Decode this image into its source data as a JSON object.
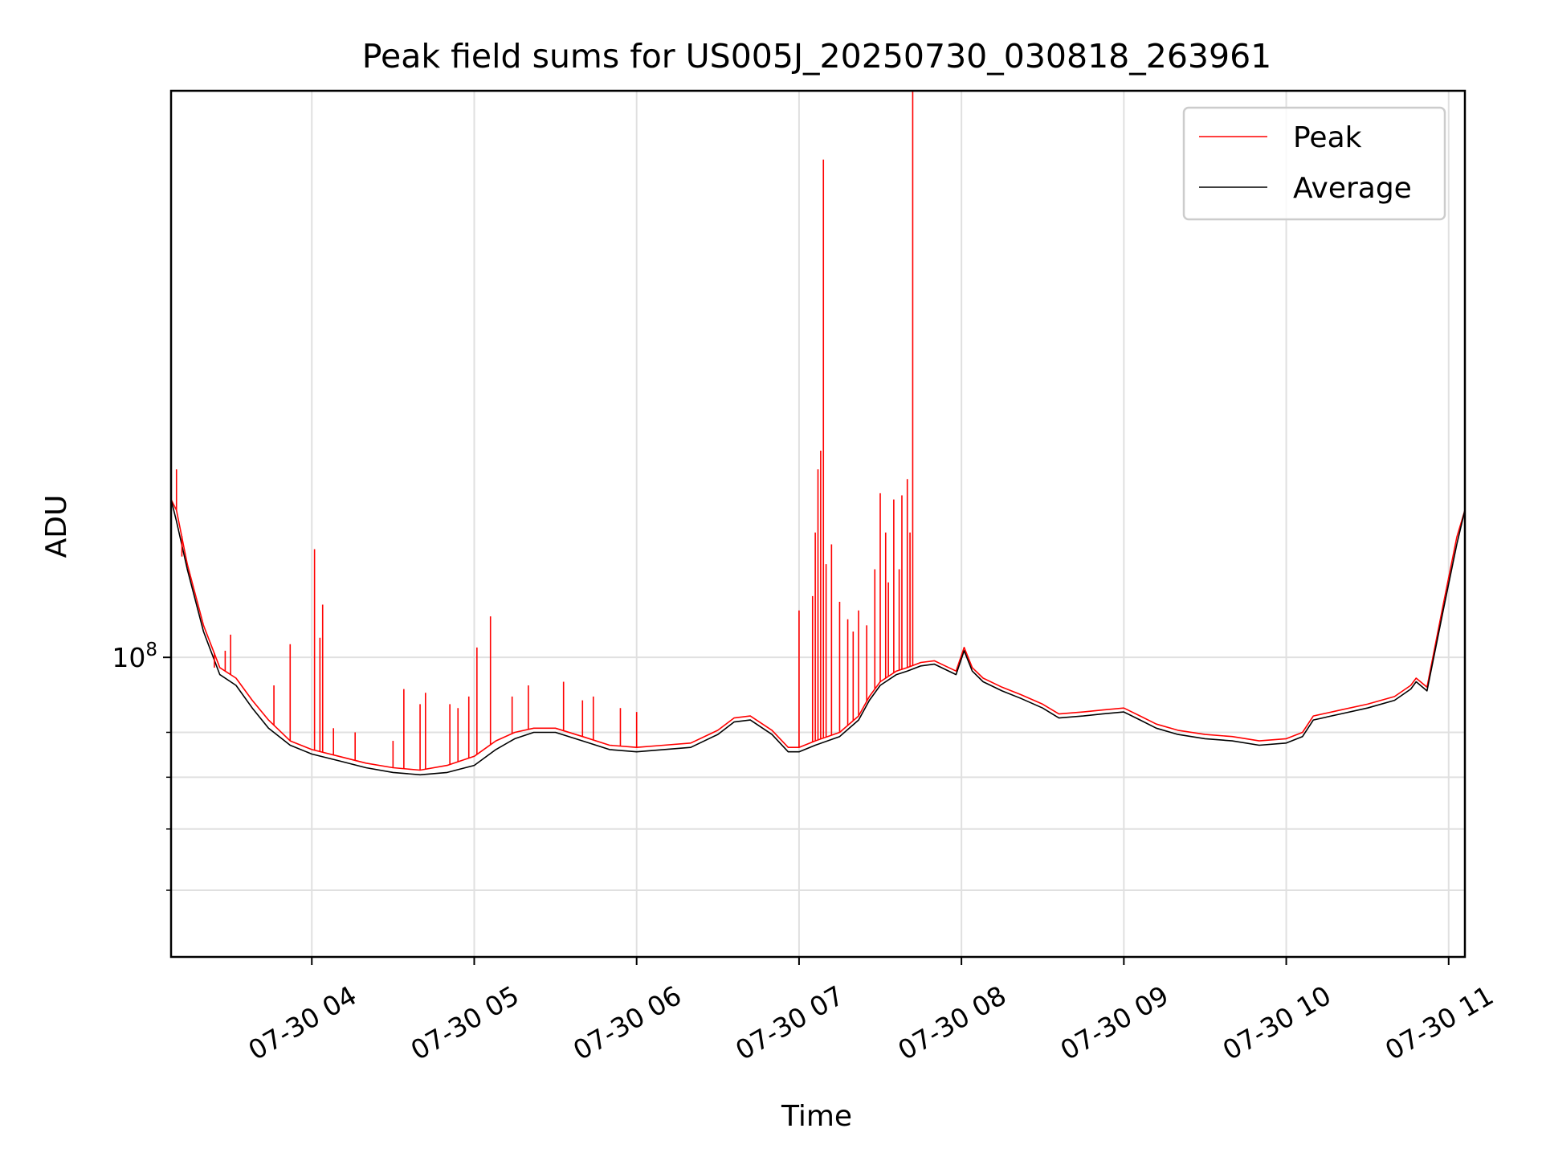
{
  "chart_data": {
    "type": "line",
    "title": "Peak field sums for US005J_20250730_030818_263961",
    "xlabel": "Time",
    "ylabel": "ADU",
    "y_scale": "log",
    "ylim": [
      41000000.0,
      540000000.0
    ],
    "y_tick_labels": [
      {
        "value": 100000000.0,
        "base": "10",
        "exp": "8"
      }
    ],
    "y_minor_ticks": [
      50000000.0,
      60000000.0,
      70000000.0,
      80000000.0
    ],
    "xlim": [
      "2025-07-30 03:08:00",
      "2025-07-30 11:06:00"
    ],
    "x_ticks": [
      {
        "value": "2025-07-30 04:00",
        "label": "07-30 04"
      },
      {
        "value": "2025-07-30 05:00",
        "label": "07-30 05"
      },
      {
        "value": "2025-07-30 06:00",
        "label": "07-30 06"
      },
      {
        "value": "2025-07-30 07:00",
        "label": "07-30 07"
      },
      {
        "value": "2025-07-30 08:00",
        "label": "07-30 08"
      },
      {
        "value": "2025-07-30 09:00",
        "label": "07-30 09"
      },
      {
        "value": "2025-07-30 10:00",
        "label": "07-30 10"
      },
      {
        "value": "2025-07-30 11:00",
        "label": "07-30 11"
      }
    ],
    "grid": true,
    "legend_position": "upper-right",
    "colors": {
      "peak": "#ff0000",
      "average": "#000000",
      "grid": "#e0e0e0"
    },
    "series": [
      {
        "name": "Average",
        "color": "#000000",
        "x": [
          "2025-07-30 03:08",
          "2025-07-30 03:10",
          "2025-07-30 03:14",
          "2025-07-30 03:20",
          "2025-07-30 03:26",
          "2025-07-30 03:32",
          "2025-07-30 03:38",
          "2025-07-30 03:44",
          "2025-07-30 03:52",
          "2025-07-30 04:00",
          "2025-07-30 04:10",
          "2025-07-30 04:20",
          "2025-07-30 04:30",
          "2025-07-30 04:40",
          "2025-07-30 04:50",
          "2025-07-30 05:00",
          "2025-07-30 05:08",
          "2025-07-30 05:15",
          "2025-07-30 05:22",
          "2025-07-30 05:30",
          "2025-07-30 05:40",
          "2025-07-30 05:50",
          "2025-07-30 06:00",
          "2025-07-30 06:10",
          "2025-07-30 06:20",
          "2025-07-30 06:30",
          "2025-07-30 06:36",
          "2025-07-30 06:42",
          "2025-07-30 06:50",
          "2025-07-30 06:56",
          "2025-07-30 07:00",
          "2025-07-30 07:06",
          "2025-07-30 07:15",
          "2025-07-30 07:22",
          "2025-07-30 07:26",
          "2025-07-30 07:30",
          "2025-07-30 07:36",
          "2025-07-30 07:40",
          "2025-07-30 07:45",
          "2025-07-30 07:50",
          "2025-07-30 07:54",
          "2025-07-30 07:58",
          "2025-07-30 08:01",
          "2025-07-30 08:04",
          "2025-07-30 08:08",
          "2025-07-30 08:15",
          "2025-07-30 08:22",
          "2025-07-30 08:30",
          "2025-07-30 08:36",
          "2025-07-30 08:45",
          "2025-07-30 08:52",
          "2025-07-30 09:00",
          "2025-07-30 09:06",
          "2025-07-30 09:12",
          "2025-07-30 09:20",
          "2025-07-30 09:30",
          "2025-07-30 09:40",
          "2025-07-30 09:50",
          "2025-07-30 10:00",
          "2025-07-30 10:06",
          "2025-07-30 10:10",
          "2025-07-30 10:20",
          "2025-07-30 10:30",
          "2025-07-30 10:40",
          "2025-07-30 10:46",
          "2025-07-30 10:48",
          "2025-07-30 10:52",
          "2025-07-30 10:58",
          "2025-07-30 11:03",
          "2025-07-30 11:06"
        ],
        "y": [
          160000000.0,
          150000000.0,
          130000000.0,
          108000000.0,
          95000000.0,
          92000000.0,
          86000000.0,
          81000000.0,
          77000000.0,
          75000000.0,
          73500000.0,
          72000000.0,
          71000000.0,
          70500000.0,
          71000000.0,
          72500000.0,
          76000000.0,
          78500000.0,
          80000000.0,
          80000000.0,
          78000000.0,
          76000000.0,
          75500000.0,
          76000000.0,
          76500000.0,
          79500000.0,
          82500000.0,
          83000000.0,
          79500000.0,
          75500000.0,
          75500000.0,
          77000000.0,
          79000000.0,
          83000000.0,
          88000000.0,
          92000000.0,
          95000000.0,
          96000000.0,
          97500000.0,
          98000000.0,
          96500000.0,
          95000000.0,
          102000000.0,
          96000000.0,
          93000000.0,
          90500000.0,
          88500000.0,
          86000000.0,
          83500000.0,
          84000000.0,
          84500000.0,
          85000000.0,
          83000000.0,
          81000000.0,
          79500000.0,
          78500000.0,
          78000000.0,
          77000000.0,
          77500000.0,
          79000000.0,
          83000000.0,
          84500000.0,
          86000000.0,
          88000000.0,
          91000000.0,
          93000000.0,
          90500000.0,
          115000000.0,
          140000000.0,
          155000000.0
        ]
      },
      {
        "name": "Peak",
        "color": "#ff0000",
        "x": [
          "2025-07-30 03:08",
          "2025-07-30 03:10",
          "2025-07-30 03:14",
          "2025-07-30 03:20",
          "2025-07-30 03:26",
          "2025-07-30 03:32",
          "2025-07-30 03:38",
          "2025-07-30 03:44",
          "2025-07-30 03:52",
          "2025-07-30 04:00",
          "2025-07-30 04:10",
          "2025-07-30 04:20",
          "2025-07-30 04:30",
          "2025-07-30 04:40",
          "2025-07-30 04:50",
          "2025-07-30 05:00",
          "2025-07-30 05:08",
          "2025-07-30 05:15",
          "2025-07-30 05:22",
          "2025-07-30 05:30",
          "2025-07-30 05:40",
          "2025-07-30 05:50",
          "2025-07-30 06:00",
          "2025-07-30 06:10",
          "2025-07-30 06:20",
          "2025-07-30 06:30",
          "2025-07-30 06:36",
          "2025-07-30 06:42",
          "2025-07-30 06:50",
          "2025-07-30 06:56",
          "2025-07-30 07:00",
          "2025-07-30 07:06",
          "2025-07-30 07:15",
          "2025-07-30 07:22",
          "2025-07-30 07:26",
          "2025-07-30 07:30",
          "2025-07-30 07:36",
          "2025-07-30 07:40",
          "2025-07-30 07:45",
          "2025-07-30 07:50",
          "2025-07-30 07:54",
          "2025-07-30 07:58",
          "2025-07-30 08:01",
          "2025-07-30 08:04",
          "2025-07-30 08:08",
          "2025-07-30 08:15",
          "2025-07-30 08:22",
          "2025-07-30 08:30",
          "2025-07-30 08:36",
          "2025-07-30 08:45",
          "2025-07-30 08:52",
          "2025-07-30 09:00",
          "2025-07-30 09:06",
          "2025-07-30 09:12",
          "2025-07-30 09:20",
          "2025-07-30 09:30",
          "2025-07-30 09:40",
          "2025-07-30 09:50",
          "2025-07-30 10:00",
          "2025-07-30 10:06",
          "2025-07-30 10:10",
          "2025-07-30 10:20",
          "2025-07-30 10:30",
          "2025-07-30 10:40",
          "2025-07-30 10:46",
          "2025-07-30 10:48",
          "2025-07-30 10:52",
          "2025-07-30 10:58",
          "2025-07-30 11:03",
          "2025-07-30 11:06"
        ],
        "y": [
          160000000.0,
          155000000.0,
          132000000.0,
          110000000.0,
          97000000.0,
          94000000.0,
          88000000.0,
          83000000.0,
          78000000.0,
          76000000.0,
          74500000.0,
          73000000.0,
          72000000.0,
          71500000.0,
          72500000.0,
          74500000.0,
          78000000.0,
          80000000.0,
          81000000.0,
          81000000.0,
          79000000.0,
          77000000.0,
          76500000.0,
          77000000.0,
          77500000.0,
          80500000.0,
          83500000.0,
          84000000.0,
          80500000.0,
          76500000.0,
          76500000.0,
          78000000.0,
          80000000.0,
          84000000.0,
          89000000.0,
          93000000.0,
          96000000.0,
          97000000.0,
          98500000.0,
          99000000.0,
          97500000.0,
          96000000.0,
          103000000.0,
          97000000.0,
          94000000.0,
          91500000.0,
          89500000.0,
          87000000.0,
          84500000.0,
          85000000.0,
          85500000.0,
          86000000.0,
          84000000.0,
          82000000.0,
          80500000.0,
          79500000.0,
          79000000.0,
          78000000.0,
          78500000.0,
          80000000.0,
          84000000.0,
          85500000.0,
          87000000.0,
          89000000.0,
          92000000.0,
          94000000.0,
          91500000.0,
          117000000.0,
          143000000.0,
          155000000.0
        ],
        "spikes": [
          [
            "2025-07-30 03:10",
            175000000.0
          ],
          [
            "2025-07-30 03:12",
            135000000.0
          ],
          [
            "2025-07-30 03:24",
            97000000.0
          ],
          [
            "2025-07-30 03:28",
            102000000.0
          ],
          [
            "2025-07-30 03:30",
            107000000.0
          ],
          [
            "2025-07-30 03:46",
            92000000.0
          ],
          [
            "2025-07-30 03:52",
            104000000.0
          ],
          [
            "2025-07-30 04:01",
            138000000.0
          ],
          [
            "2025-07-30 04:03",
            106000000.0
          ],
          [
            "2025-07-30 04:04",
            117000000.0
          ],
          [
            "2025-07-30 04:08",
            81000000.0
          ],
          [
            "2025-07-30 04:16",
            80000000.0
          ],
          [
            "2025-07-30 04:30",
            78000000.0
          ],
          [
            "2025-07-30 04:34",
            91000000.0
          ],
          [
            "2025-07-30 04:40",
            87000000.0
          ],
          [
            "2025-07-30 04:42",
            90000000.0
          ],
          [
            "2025-07-30 04:51",
            87000000.0
          ],
          [
            "2025-07-30 04:54",
            86000000.0
          ],
          [
            "2025-07-30 04:58",
            89000000.0
          ],
          [
            "2025-07-30 05:01",
            103000000.0
          ],
          [
            "2025-07-30 05:06",
            113000000.0
          ],
          [
            "2025-07-30 05:14",
            89000000.0
          ],
          [
            "2025-07-30 05:20",
            92000000.0
          ],
          [
            "2025-07-30 05:33",
            93000000.0
          ],
          [
            "2025-07-30 05:40",
            88000000.0
          ],
          [
            "2025-07-30 05:44",
            89000000.0
          ],
          [
            "2025-07-30 05:54",
            86000000.0
          ],
          [
            "2025-07-30 06:00",
            85000000.0
          ],
          [
            "2025-07-30 07:00",
            115000000.0
          ],
          [
            "2025-07-30 07:05",
            120000000.0
          ],
          [
            "2025-07-30 07:06",
            145000000.0
          ],
          [
            "2025-07-30 07:07",
            175000000.0
          ],
          [
            "2025-07-30 07:08",
            185000000.0
          ],
          [
            "2025-07-30 07:09",
            440000000.0
          ],
          [
            "2025-07-30 07:10",
            132000000.0
          ],
          [
            "2025-07-30 07:12",
            140000000.0
          ],
          [
            "2025-07-30 07:15",
            118000000.0
          ],
          [
            "2025-07-30 07:18",
            112000000.0
          ],
          [
            "2025-07-30 07:20",
            108000000.0
          ],
          [
            "2025-07-30 07:22",
            115000000.0
          ],
          [
            "2025-07-30 07:25",
            110000000.0
          ],
          [
            "2025-07-30 07:28",
            130000000.0
          ],
          [
            "2025-07-30 07:30",
            163000000.0
          ],
          [
            "2025-07-30 07:32",
            145000000.0
          ],
          [
            "2025-07-30 07:33",
            125000000.0
          ],
          [
            "2025-07-30 07:35",
            160000000.0
          ],
          [
            "2025-07-30 07:37",
            130000000.0
          ],
          [
            "2025-07-30 07:38",
            162000000.0
          ],
          [
            "2025-07-30 07:40",
            170000000.0
          ],
          [
            "2025-07-30 07:41",
            145000000.0
          ],
          [
            "2025-07-30 07:42",
            540000000.0
          ]
        ]
      }
    ]
  }
}
